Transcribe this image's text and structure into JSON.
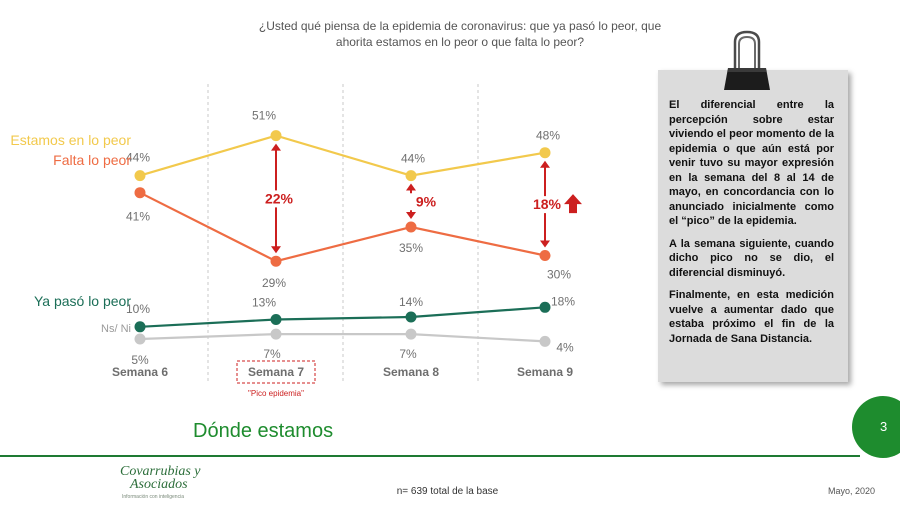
{
  "question": "¿Usted qué piensa de la epidemia de coronavirus: que ya pasó lo peor, que ahorita estamos en lo peor o que falta lo peor?",
  "chart_data": {
    "type": "line",
    "categories": [
      "Semana 6",
      "Semana 7",
      "Semana 8",
      "Semana 9"
    ],
    "unit": "%",
    "ylim": [
      0,
      55
    ],
    "grid": "vertical dashed separators",
    "series": [
      {
        "name": "Estamos en lo peor",
        "values": [
          44,
          51,
          44,
          48
        ],
        "color": "#f2c94c",
        "labels": [
          "44%",
          "51%",
          "44%",
          "48%"
        ]
      },
      {
        "name": "Falta lo peor",
        "values": [
          41,
          29,
          35,
          30
        ],
        "color": "#ee6c43",
        "labels": [
          "41%",
          "29%",
          "35%",
          "30%"
        ]
      },
      {
        "name": "Ya pasó lo peor",
        "values": [
          10,
          13,
          14,
          18
        ],
        "color": "#1b6e57",
        "labels": [
          "10%",
          "13%",
          "14%",
          "18%"
        ]
      },
      {
        "name": "Ns/ Ni",
        "values": [
          5,
          7,
          7,
          4
        ],
        "color": "#c8c8c8",
        "labels": [
          "5%",
          "7%",
          "7%",
          "4%"
        ]
      }
    ],
    "differences": [
      {
        "category": "Semana 7",
        "label": "22%"
      },
      {
        "category": "Semana 8",
        "label": "9%"
      },
      {
        "category": "Semana 9",
        "label": "18%",
        "trend": "up"
      }
    ],
    "highlight": {
      "category": "Semana 7",
      "note": "\"Pico epidemia\""
    },
    "accent_color": "#cc1f1f"
  },
  "panel": {
    "paragraphs": [
      "El diferencial entre la percepción sobre estar viviendo el peor momento de la epidemia o que aún está por venir tuvo su mayor expresión en la semana del 8 al 14 de mayo, en concordancia con lo anunciado inicialmente como el “pico” de la epidemia.",
      "A la semana siguiente, cuando dicho pico no se dio, el diferencial disminuyó.",
      "Finalmente, en esta medición vuelve a aumentar dado que estaba próximo el fin de la Jornada de Sana Distancia."
    ],
    "icon": "binder-clip-icon"
  },
  "section_title": "Dónde estamos",
  "page_number": "3",
  "logo": {
    "line1": "Covarrubias y",
    "line2": "Asociados",
    "tagline": "Información con inteligencia"
  },
  "footnote": "n= 639 total de la base",
  "date": "Mayo, 2020"
}
